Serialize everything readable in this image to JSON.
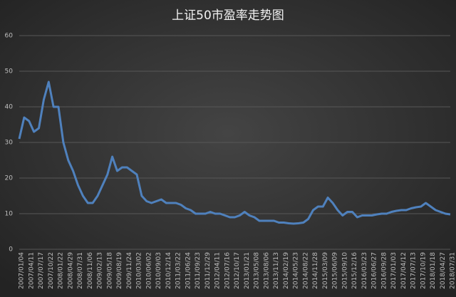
{
  "chart_data": {
    "type": "line",
    "title": "上证50市盈率走势图",
    "categories": [
      "2007/01/04",
      null,
      "2007/04/11",
      null,
      "2007/07/17",
      null,
      "2007/10/22",
      null,
      "2008/01/22",
      null,
      "2008/04/29",
      null,
      "2008/07/31",
      null,
      "2008/11/06",
      null,
      "2009/02/13",
      null,
      "2009/05/18",
      null,
      "2009/08/19",
      null,
      "2009/11/24",
      null,
      "2010/03/02",
      null,
      "2010/06/02",
      null,
      "2010/09/03",
      null,
      "2010/12/14",
      null,
      "2011/03/22",
      null,
      "2011/06/24",
      null,
      "2011/09/23",
      null,
      "2011/12/29",
      null,
      "2012/04/11",
      null,
      "2012/07/16",
      null,
      "2012/10/17",
      null,
      "2013/01/21",
      null,
      "2013/05/08",
      null,
      "2013/08/06",
      null,
      "2013/11/13",
      null,
      "2014/02/19",
      null,
      "2014/05/23",
      null,
      "2014/08/22",
      null,
      "2014/11/28",
      null,
      "2015/03/09",
      null,
      "2015/06/09",
      null,
      "2015/09/10",
      null,
      "2015/12/16",
      null,
      "2016/03/23",
      null,
      "2016/06/27",
      null,
      "2016/09/28",
      null,
      "2017/01/03",
      null,
      "2017/04/12",
      null,
      "2017/07/13",
      null,
      "2017/10/19",
      null,
      "2018/01/18",
      null,
      "2018/04/27",
      null,
      "2018/07/31"
    ],
    "series": [
      {
        "color": "#4f81bd",
        "values": [
          31,
          37,
          36,
          33,
          34,
          42,
          47,
          40,
          40,
          30,
          25,
          22,
          18,
          15,
          13,
          13,
          15,
          18,
          21,
          26,
          22,
          23,
          23,
          22,
          21,
          15,
          13.5,
          13,
          13.5,
          14,
          13,
          13,
          13,
          12.5,
          11.5,
          11,
          10,
          10,
          10,
          10.5,
          10,
          10,
          9.5,
          9,
          9,
          9.5,
          10.5,
          9.5,
          9,
          8,
          8,
          8,
          8,
          7.5,
          7.5,
          7.3,
          7.2,
          7.3,
          7.5,
          8.5,
          11,
          12,
          12,
          14.5,
          13,
          11,
          9.5,
          10.5,
          10.5,
          9,
          9.5,
          9.5,
          9.5,
          9.8,
          10,
          10,
          10.5,
          10.8,
          11,
          11,
          11.5,
          11.8,
          12,
          13,
          12,
          11,
          10.5,
          10,
          9.8
        ]
      }
    ],
    "ylim": [
      0,
      60
    ],
    "yticks": [
      0,
      10,
      20,
      30,
      40,
      50,
      60
    ],
    "grid": true
  }
}
